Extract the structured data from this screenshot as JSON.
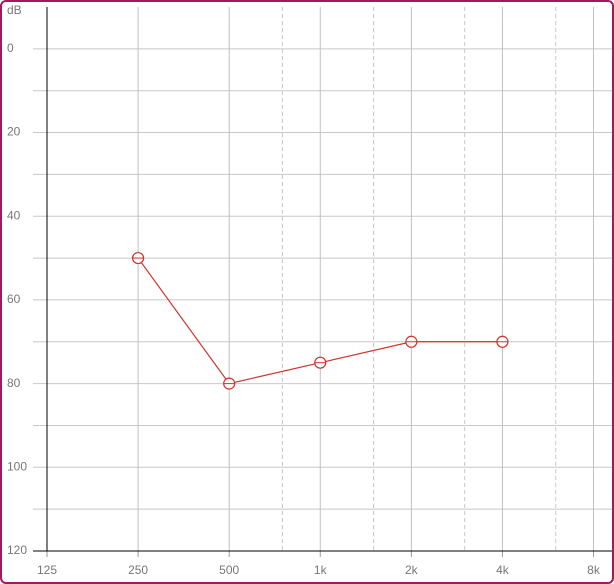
{
  "chart_data": {
    "type": "line",
    "y_label": "dB",
    "x": [
      250,
      500,
      1000,
      2000,
      4000
    ],
    "series": [
      {
        "color": "#d2302c",
        "values": [
          50,
          80,
          75,
          70,
          70
        ]
      }
    ],
    "log_x": true,
    "xlim": [
      125,
      9000
    ],
    "xticks": [
      125,
      250,
      500,
      {
        "value": 1000,
        "label": "1k"
      },
      {
        "value": 2000,
        "label": "2k"
      },
      {
        "value": 4000,
        "label": "4k"
      },
      {
        "value": 8000,
        "label": "8k"
      }
    ],
    "x_minor_ticks": [
      750,
      1500,
      3000,
      6000
    ],
    "ylim": [
      -10,
      120
    ],
    "yticks": [
      0,
      20,
      40,
      60,
      80,
      100,
      120
    ],
    "y_minor_ticks": [
      10,
      30,
      50,
      70,
      90,
      110
    ],
    "y_inverted": true,
    "grid": true
  }
}
